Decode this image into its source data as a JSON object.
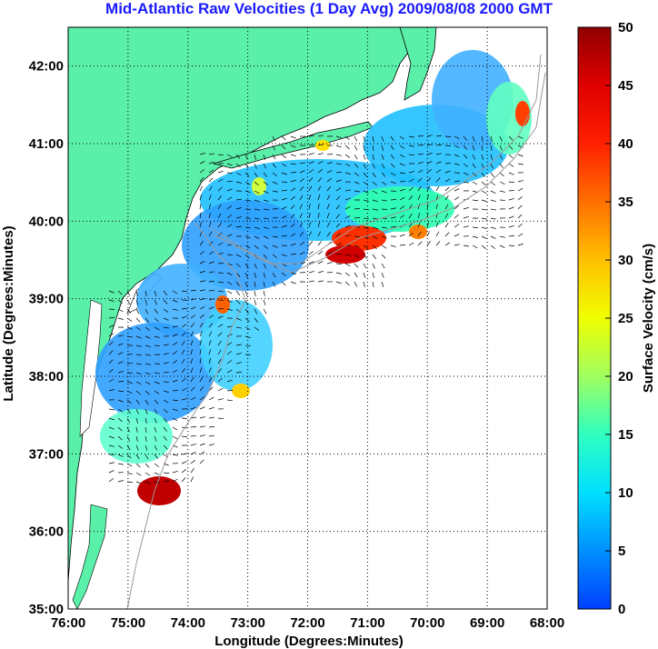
{
  "title": "Mid-Atlantic Raw Velocities (1 Day Avg) 2009/08/08 2000 GMT",
  "map": {
    "xlabel": "Longitude (Degrees:Minutes)",
    "ylabel": "Latitude (Degrees:Minutes)",
    "x_ticks": [
      "76:00",
      "75:00",
      "74:00",
      "73:00",
      "72:00",
      "71:00",
      "70:00",
      "69:00",
      "68:00"
    ],
    "y_ticks": [
      "35:00",
      "36:00",
      "37:00",
      "38:00",
      "39:00",
      "40:00",
      "41:00",
      "42:00"
    ],
    "lon_range": [
      -76,
      -68
    ],
    "lat_range": [
      35,
      42.5
    ],
    "grid": "dotted",
    "land_color": "#5af0aa",
    "ocean_color": "#ffffff",
    "bathymetry_color": "#9a9a9a"
  },
  "colorbar": {
    "label": "Surface Velocity (cm/s)",
    "ticks": [
      "0",
      "5",
      "10",
      "15",
      "20",
      "25",
      "30",
      "35",
      "40",
      "45",
      "50"
    ],
    "range": [
      0,
      50
    ],
    "colors": [
      "#0040ff",
      "#00a0ff",
      "#00ffff",
      "#40ffb0",
      "#c0ff40",
      "#ffff00",
      "#ffa000",
      "#ff4000",
      "#ff0000",
      "#a00000"
    ]
  }
}
